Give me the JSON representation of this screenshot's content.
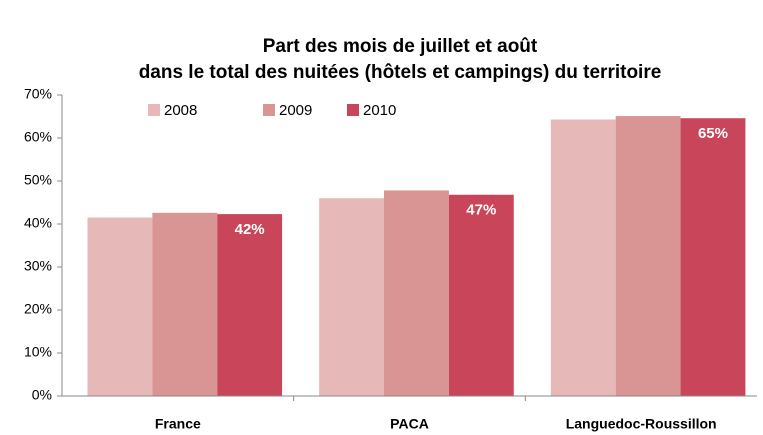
{
  "chart_data": {
    "type": "bar",
    "title": [
      "Part des mois de juillet et août",
      "dans le total des nuitées (hôtels et campings) du territoire"
    ],
    "categories": [
      "France",
      "PACA",
      "Languedoc-Roussillon"
    ],
    "series": [
      {
        "name": "2008",
        "color": "#e6b9b8",
        "values": [
          41.5,
          46,
          64.3
        ]
      },
      {
        "name": "2009",
        "color": "#d99594",
        "values": [
          42.6,
          47.8,
          65.1
        ]
      },
      {
        "name": "2010",
        "color": "#c9465a",
        "values": [
          42.3,
          46.8,
          64.6
        ],
        "value_labels": [
          "42%",
          "47%",
          "65%"
        ]
      }
    ],
    "ylim": [
      0,
      70
    ],
    "yticks": [
      {
        "value": 0,
        "label": "0%"
      },
      {
        "value": 10,
        "label": "10%"
      },
      {
        "value": 20,
        "label": "20%"
      },
      {
        "value": 30,
        "label": "30%"
      },
      {
        "value": 40,
        "label": "40%"
      },
      {
        "value": 50,
        "label": "50%"
      },
      {
        "value": 60,
        "label": "60%"
      },
      {
        "value": 70,
        "label": "70%"
      }
    ],
    "legend": "top-left"
  }
}
